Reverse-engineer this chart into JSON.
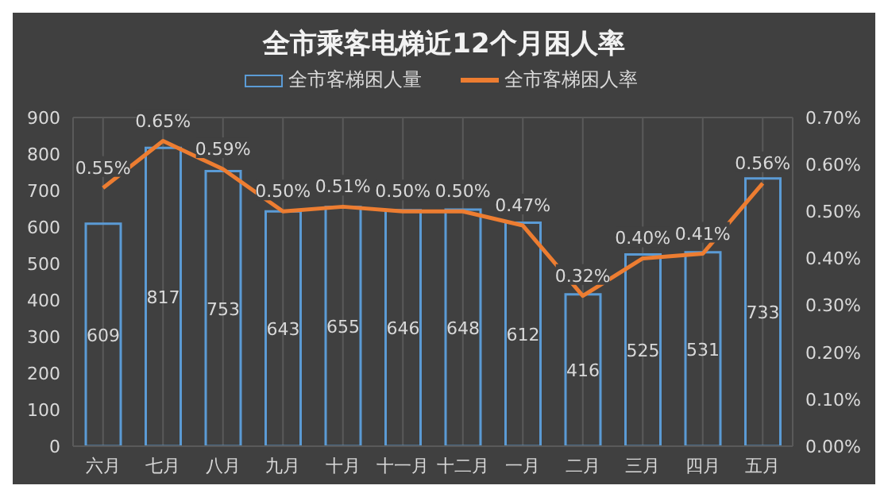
{
  "chart_data": {
    "type": "bar",
    "title": "全市乘客电梯近12个月困人率",
    "categories": [
      "六月",
      "七月",
      "八月",
      "九月",
      "十月",
      "十一月",
      "十二月",
      "一月",
      "二月",
      "三月",
      "四月",
      "五月"
    ],
    "series": [
      {
        "name": "全市客梯困人量",
        "color": "#5b9bd5",
        "values": [
          609,
          817,
          753,
          643,
          655,
          646,
          648,
          612,
          416,
          525,
          531,
          733
        ],
        "value_labels": [
          "609",
          "817",
          "753",
          "643",
          "655",
          "646",
          "648",
          "612",
          "416",
          "525",
          "531",
          "733"
        ]
      },
      {
        "name": "全市客梯困人率",
        "type": "line",
        "axis": "y2",
        "color": "#ed7d31",
        "values": [
          0.55,
          0.65,
          0.59,
          0.5,
          0.51,
          0.5,
          0.5,
          0.47,
          0.32,
          0.4,
          0.41,
          0.56
        ],
        "value_labels": [
          "0.55%",
          "0.65%",
          "0.59%",
          "0.50%",
          "0.51%",
          "0.50%",
          "0.50%",
          "0.47%",
          "0.32%",
          "0.40%",
          "0.41%",
          "0.56%"
        ]
      }
    ],
    "ylim": [
      0,
      900
    ],
    "yticks": [
      0,
      100,
      200,
      300,
      400,
      500,
      600,
      700,
      800,
      900
    ],
    "y2lim": [
      0,
      0.7
    ],
    "y2ticks": [
      {
        "value": 0,
        "label": "0.00%"
      },
      {
        "value": 0.1,
        "label": "0.10%"
      },
      {
        "value": 0.2,
        "label": "0.20%"
      },
      {
        "value": 0.3,
        "label": "0.30%"
      },
      {
        "value": 0.4,
        "label": "0.40%"
      },
      {
        "value": 0.5,
        "label": "0.50%"
      },
      {
        "value": 0.6,
        "label": "0.60%"
      },
      {
        "value": 0.7,
        "label": "0.70%"
      }
    ],
    "grid": true,
    "legend": "top",
    "marker": "none"
  }
}
